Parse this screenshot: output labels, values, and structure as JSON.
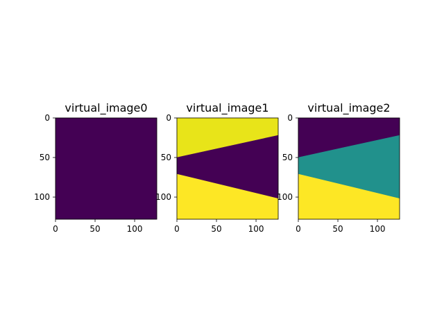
{
  "chart_data": [
    {
      "type": "heatmap",
      "title": "virtual_image0",
      "xlabel": "",
      "ylabel": "",
      "xlim": [
        0,
        128
      ],
      "ylim": [
        128,
        0
      ],
      "xticks": [
        0,
        50,
        100
      ],
      "yticks": [
        0,
        50,
        100
      ],
      "colormap": "viridis",
      "regions": [
        {
          "color": "#440154",
          "polygon": [
            [
              0,
              0
            ],
            [
              128,
              0
            ],
            [
              128,
              128
            ],
            [
              0,
              128
            ]
          ]
        }
      ]
    },
    {
      "type": "heatmap",
      "title": "virtual_image1",
      "xlabel": "",
      "ylabel": "",
      "xlim": [
        0,
        128
      ],
      "ylim": [
        128,
        0
      ],
      "xticks": [
        0,
        50,
        100
      ],
      "yticks": [
        0,
        50,
        100
      ],
      "colormap": "viridis",
      "regions": [
        {
          "color": "#e8e419",
          "polygon": [
            [
              0,
              0
            ],
            [
              128,
              0
            ],
            [
              128,
              22
            ],
            [
              0,
              50
            ]
          ]
        },
        {
          "color": "#440154",
          "polygon": [
            [
              0,
              50
            ],
            [
              128,
              22
            ],
            [
              128,
              102
            ],
            [
              0,
              71
            ]
          ]
        },
        {
          "color": "#fde725",
          "polygon": [
            [
              0,
              71
            ],
            [
              128,
              102
            ],
            [
              128,
              128
            ],
            [
              0,
              128
            ]
          ]
        }
      ]
    },
    {
      "type": "heatmap",
      "title": "virtual_image2",
      "xlabel": "",
      "ylabel": "",
      "xlim": [
        0,
        128
      ],
      "ylim": [
        128,
        0
      ],
      "xticks": [
        0,
        50,
        100
      ],
      "yticks": [
        0,
        50,
        100
      ],
      "colormap": "viridis",
      "regions": [
        {
          "color": "#440154",
          "polygon": [
            [
              0,
              0
            ],
            [
              128,
              0
            ],
            [
              128,
              22
            ],
            [
              0,
              50
            ]
          ]
        },
        {
          "color": "#21918c",
          "polygon": [
            [
              0,
              50
            ],
            [
              128,
              22
            ],
            [
              128,
              102
            ],
            [
              0,
              71
            ]
          ]
        },
        {
          "color": "#fde725",
          "polygon": [
            [
              0,
              71
            ],
            [
              128,
              102
            ],
            [
              128,
              128
            ],
            [
              0,
              128
            ]
          ]
        }
      ]
    }
  ]
}
